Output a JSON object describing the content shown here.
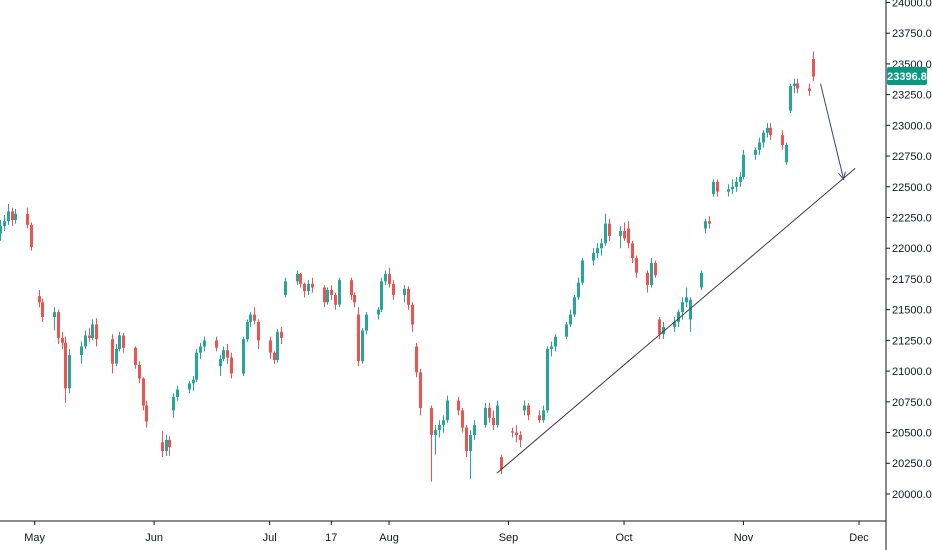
{
  "colors": {
    "up": "#26a69a",
    "down": "#ef5350",
    "axis": "#131722",
    "background": "#ffffff",
    "trendline": "#363a45",
    "arrow": "#3d3f8f",
    "price_badge": "#089981"
  },
  "price_badge": "23396.8",
  "chart_data": {
    "type": "candlestick",
    "title": "",
    "xlabel": "",
    "ylabel": "",
    "ylim": [
      19780,
      24020
    ],
    "xlim": [
      "2024-04-22",
      "2024-12-08"
    ],
    "grid": false,
    "y_ticks": [
      "20000.0",
      "20250.0",
      "20500.0",
      "20750.0",
      "21000.0",
      "21250.0",
      "21500.0",
      "21750.0",
      "22000.0",
      "22250.0",
      "22500.0",
      "22750.0",
      "23000.0",
      "23250.0",
      "23500.0",
      "23750.0",
      "24000.0"
    ],
    "x_ticks": [
      {
        "date": "2024-05-01",
        "label": "May"
      },
      {
        "date": "2024-06-01",
        "label": "Jun"
      },
      {
        "date": "2024-07-01",
        "label": "Jul"
      },
      {
        "date": "2024-07-17",
        "label": "17"
      },
      {
        "date": "2024-08-01",
        "label": "Aug"
      },
      {
        "date": "2024-09-01",
        "label": "Sep"
      },
      {
        "date": "2024-10-01",
        "label": "Oct"
      },
      {
        "date": "2024-11-01",
        "label": "Nov"
      },
      {
        "date": "2024-12-01",
        "label": "Dec"
      }
    ],
    "candles": [
      [
        "2024-04-22",
        22120,
        22230,
        22060,
        22180
      ],
      [
        "2024-04-23",
        22180,
        22270,
        22140,
        22220
      ],
      [
        "2024-04-24",
        22220,
        22360,
        22190,
        22300
      ],
      [
        "2024-04-25",
        22300,
        22330,
        22180,
        22230
      ],
      [
        "2024-04-26",
        22230,
        22320,
        22200,
        22280
      ],
      [
        "2024-04-29",
        22280,
        22330,
        22160,
        22190
      ],
      [
        "2024-04-30",
        22190,
        22210,
        21980,
        22010
      ],
      [
        "2024-05-02",
        21610,
        21660,
        21520,
        21560
      ],
      [
        "2024-05-03",
        21560,
        21590,
        21400,
        21440
      ],
      [
        "2024-05-06",
        21440,
        21520,
        21330,
        21480
      ],
      [
        "2024-05-07",
        21480,
        21500,
        21220,
        21270
      ],
      [
        "2024-05-08",
        21270,
        21320,
        21180,
        21230
      ],
      [
        "2024-05-09",
        21230,
        21280,
        20740,
        20860
      ],
      [
        "2024-05-10",
        20860,
        21180,
        20820,
        21130
      ],
      [
        "2024-05-13",
        21130,
        21240,
        21060,
        21200
      ],
      [
        "2024-05-14",
        21200,
        21330,
        21180,
        21290
      ],
      [
        "2024-05-15",
        21290,
        21350,
        21240,
        21270
      ],
      [
        "2024-05-16",
        21270,
        21420,
        21250,
        21380
      ],
      [
        "2024-05-17",
        21380,
        21430,
        21200,
        21260
      ],
      [
        "2024-05-21",
        21260,
        21300,
        20980,
        21060
      ],
      [
        "2024-05-22",
        21060,
        21220,
        21040,
        21180
      ],
      [
        "2024-05-23",
        21180,
        21320,
        21160,
        21290
      ],
      [
        "2024-05-24",
        21290,
        21310,
        21150,
        21190
      ],
      [
        "2024-05-27",
        21190,
        21200,
        21020,
        21050
      ],
      [
        "2024-05-28",
        21050,
        21080,
        20900,
        20940
      ],
      [
        "2024-05-29",
        20940,
        20950,
        20680,
        20720
      ],
      [
        "2024-05-30",
        20720,
        20760,
        20540,
        20590
      ],
      [
        "2024-06-03",
        20420,
        20510,
        20300,
        20350
      ],
      [
        "2024-06-04",
        20350,
        20480,
        20310,
        20440
      ],
      [
        "2024-06-05",
        20440,
        20470,
        20310,
        20380
      ],
      [
        "2024-06-06",
        20680,
        20820,
        20620,
        20790
      ],
      [
        "2024-06-07",
        20790,
        20880,
        20760,
        20850
      ],
      [
        "2024-06-10",
        20850,
        20920,
        20820,
        20900
      ],
      [
        "2024-06-11",
        20900,
        20960,
        20840,
        20930
      ],
      [
        "2024-06-12",
        20930,
        21180,
        20910,
        21150
      ],
      [
        "2024-06-13",
        21150,
        21230,
        21100,
        21200
      ],
      [
        "2024-06-14",
        21200,
        21280,
        21160,
        21250
      ],
      [
        "2024-06-17",
        21250,
        21280,
        21160,
        21190
      ],
      [
        "2024-06-18",
        21040,
        21130,
        20960,
        21100
      ],
      [
        "2024-06-19",
        21100,
        21200,
        21080,
        21170
      ],
      [
        "2024-06-20",
        21170,
        21220,
        21060,
        21110
      ],
      [
        "2024-06-21",
        21110,
        21150,
        20940,
        20980
      ],
      [
        "2024-06-24",
        20980,
        21280,
        20960,
        21260
      ],
      [
        "2024-06-25",
        21260,
        21420,
        21240,
        21400
      ],
      [
        "2024-06-26",
        21400,
        21480,
        21360,
        21460
      ],
      [
        "2024-06-27",
        21460,
        21520,
        21380,
        21410
      ],
      [
        "2024-06-28",
        21400,
        21420,
        21180,
        21250
      ],
      [
        "2024-07-01",
        21250,
        21280,
        21100,
        21150
      ],
      [
        "2024-07-02",
        21150,
        21160,
        21060,
        21090
      ],
      [
        "2024-07-03",
        21090,
        21340,
        21070,
        21320
      ],
      [
        "2024-07-04",
        21320,
        21360,
        21220,
        21270
      ],
      [
        "2024-07-05",
        21620,
        21760,
        21600,
        21730
      ],
      [
        "2024-07-08",
        21730,
        21820,
        21700,
        21790
      ],
      [
        "2024-07-09",
        21790,
        21800,
        21680,
        21710
      ],
      [
        "2024-07-10",
        21710,
        21720,
        21600,
        21650
      ],
      [
        "2024-07-11",
        21650,
        21740,
        21620,
        21710
      ],
      [
        "2024-07-12",
        21710,
        21760,
        21640,
        21680
      ],
      [
        "2024-07-15",
        21680,
        21700,
        21520,
        21560
      ],
      [
        "2024-07-16",
        21560,
        21680,
        21540,
        21660
      ],
      [
        "2024-07-17",
        21660,
        21700,
        21580,
        21620
      ],
      [
        "2024-07-18",
        21620,
        21640,
        21500,
        21540
      ],
      [
        "2024-07-19",
        21540,
        21760,
        21520,
        21740
      ],
      [
        "2024-07-22",
        21740,
        21760,
        21580,
        21620
      ],
      [
        "2024-07-23",
        21620,
        21640,
        21520,
        21560
      ],
      [
        "2024-07-24",
        21460,
        21520,
        21040,
        21080
      ],
      [
        "2024-07-25",
        21080,
        21350,
        21060,
        21330
      ],
      [
        "2024-07-26",
        21330,
        21480,
        21300,
        21460
      ],
      [
        "2024-07-29",
        21460,
        21520,
        21420,
        21500
      ],
      [
        "2024-07-30",
        21500,
        21760,
        21480,
        21730
      ],
      [
        "2024-07-31",
        21730,
        21820,
        21700,
        21790
      ],
      [
        "2024-08-01",
        21790,
        21840,
        21680,
        21710
      ],
      [
        "2024-08-02",
        21710,
        21740,
        21580,
        21620
      ],
      [
        "2024-08-05",
        21620,
        21700,
        21560,
        21670
      ],
      [
        "2024-08-06",
        21670,
        21690,
        21500,
        21540
      ],
      [
        "2024-08-07",
        21540,
        21560,
        21320,
        21380
      ],
      [
        "2024-08-08",
        21200,
        21230,
        20950,
        20990
      ],
      [
        "2024-08-09",
        20990,
        21020,
        20640,
        20700
      ],
      [
        "2024-08-12",
        20700,
        20720,
        20100,
        20480
      ],
      [
        "2024-08-13",
        20480,
        20560,
        20320,
        20520
      ],
      [
        "2024-08-14",
        20520,
        20600,
        20460,
        20560
      ],
      [
        "2024-08-15",
        20560,
        20640,
        20500,
        20600
      ],
      [
        "2024-08-16",
        20600,
        20800,
        20580,
        20760
      ],
      [
        "2024-08-19",
        20760,
        20790,
        20640,
        20680
      ],
      [
        "2024-08-20",
        20680,
        20700,
        20500,
        20540
      ],
      [
        "2024-08-21",
        20540,
        20560,
        20300,
        20350
      ],
      [
        "2024-08-22",
        20350,
        20520,
        20120,
        20480
      ],
      [
        "2024-08-23",
        20480,
        20600,
        20440,
        20560
      ],
      [
        "2024-08-26",
        20560,
        20740,
        20540,
        20700
      ],
      [
        "2024-08-27",
        20700,
        20740,
        20580,
        20620
      ],
      [
        "2024-08-28",
        20620,
        20680,
        20520,
        20560
      ],
      [
        "2024-08-29",
        20560,
        20760,
        20540,
        20720
      ],
      [
        "2024-08-30",
        20300,
        20320,
        20160,
        20200
      ],
      [
        "2024-09-02",
        20510,
        20540,
        20460,
        20500
      ],
      [
        "2024-09-03",
        20500,
        20560,
        20420,
        20480
      ],
      [
        "2024-09-04",
        20480,
        20510,
        20380,
        20440
      ],
      [
        "2024-09-05",
        20680,
        20760,
        20640,
        20720
      ],
      [
        "2024-09-06",
        20720,
        20740,
        20600,
        20640
      ],
      [
        "2024-09-09",
        20640,
        20680,
        20580,
        20600
      ],
      [
        "2024-09-10",
        20600,
        20720,
        20580,
        20680
      ],
      [
        "2024-09-11",
        20680,
        21200,
        20660,
        21180
      ],
      [
        "2024-09-12",
        21180,
        21240,
        21120,
        21200
      ],
      [
        "2024-09-13",
        21200,
        21300,
        21160,
        21280
      ],
      [
        "2024-09-16",
        21280,
        21400,
        21260,
        21380
      ],
      [
        "2024-09-17",
        21380,
        21500,
        21360,
        21460
      ],
      [
        "2024-09-18",
        21460,
        21620,
        21440,
        21600
      ],
      [
        "2024-09-19",
        21600,
        21760,
        21580,
        21720
      ],
      [
        "2024-09-20",
        21720,
        21920,
        21700,
        21900
      ],
      [
        "2024-09-23",
        21900,
        22000,
        21860,
        21960
      ],
      [
        "2024-09-24",
        21960,
        22040,
        21920,
        22000
      ],
      [
        "2024-09-25",
        22000,
        22080,
        21940,
        22040
      ],
      [
        "2024-09-26",
        22040,
        22280,
        22020,
        22200
      ],
      [
        "2024-09-27",
        22200,
        22240,
        22060,
        22100
      ],
      [
        "2024-09-30",
        22100,
        22180,
        22000,
        22140
      ],
      [
        "2024-10-01",
        22140,
        22210,
        22060,
        22080
      ],
      [
        "2024-10-02",
        22160,
        22220,
        22000,
        22040
      ],
      [
        "2024-10-03",
        22040,
        22060,
        21880,
        21920
      ],
      [
        "2024-10-04",
        21920,
        21940,
        21760,
        21800
      ],
      [
        "2024-10-07",
        21800,
        21820,
        21640,
        21700
      ],
      [
        "2024-10-08",
        21700,
        21920,
        21680,
        21880
      ],
      [
        "2024-10-09",
        21880,
        21900,
        21760,
        21780
      ],
      [
        "2024-10-10",
        21420,
        21440,
        21260,
        21300
      ],
      [
        "2024-10-11",
        21300,
        21400,
        21260,
        21360
      ],
      [
        "2024-10-14",
        21360,
        21440,
        21320,
        21400
      ],
      [
        "2024-10-15",
        21400,
        21500,
        21360,
        21480
      ],
      [
        "2024-10-16",
        21480,
        21600,
        21420,
        21560
      ],
      [
        "2024-10-17",
        21560,
        21680,
        21520,
        21600
      ],
      [
        "2024-10-18",
        21420,
        21600,
        21320,
        21580
      ],
      [
        "2024-10-21",
        21680,
        21820,
        21660,
        21800
      ],
      [
        "2024-10-22",
        22160,
        22240,
        22120,
        22220
      ],
      [
        "2024-10-23",
        22220,
        22260,
        22160,
        22200
      ],
      [
        "2024-10-24",
        22440,
        22560,
        22420,
        22540
      ],
      [
        "2024-10-25",
        22540,
        22560,
        22420,
        22460
      ],
      [
        "2024-10-28",
        22460,
        22520,
        22420,
        22480
      ],
      [
        "2024-10-29",
        22480,
        22560,
        22440,
        22500
      ],
      [
        "2024-10-30",
        22500,
        22580,
        22460,
        22540
      ],
      [
        "2024-10-31",
        22540,
        22620,
        22500,
        22580
      ],
      [
        "2024-11-01",
        22580,
        22800,
        22560,
        22760
      ],
      [
        "2024-11-04",
        22760,
        22820,
        22720,
        22800
      ],
      [
        "2024-11-05",
        22800,
        22900,
        22760,
        22860
      ],
      [
        "2024-11-06",
        22860,
        22960,
        22820,
        22940
      ],
      [
        "2024-11-07",
        22940,
        23020,
        22900,
        22980
      ],
      [
        "2024-11-08",
        22980,
        23020,
        22880,
        22920
      ],
      [
        "2024-11-11",
        22920,
        22960,
        22800,
        22840
      ],
      [
        "2024-11-12",
        22700,
        22860,
        22680,
        22840
      ],
      [
        "2024-11-13",
        23120,
        23340,
        23100,
        23320
      ],
      [
        "2024-11-14",
        23320,
        23380,
        23260,
        23340
      ],
      [
        "2024-11-15",
        23340,
        23380,
        23260,
        23300
      ],
      [
        "2024-11-18",
        23300,
        23340,
        23240,
        23280
      ],
      [
        "2024-11-19",
        23540,
        23600,
        23360,
        23396.8
      ]
    ],
    "annotations": [
      {
        "type": "trendline",
        "from": {
          "date": "2024-08-29",
          "value": 20170
        },
        "to": {
          "date": "2024-11-30",
          "value": 22650
        }
      },
      {
        "type": "arrow",
        "from": {
          "date": "2024-11-21",
          "value": 23340
        },
        "to": {
          "date": "2024-11-27",
          "value": 22560
        }
      }
    ]
  }
}
